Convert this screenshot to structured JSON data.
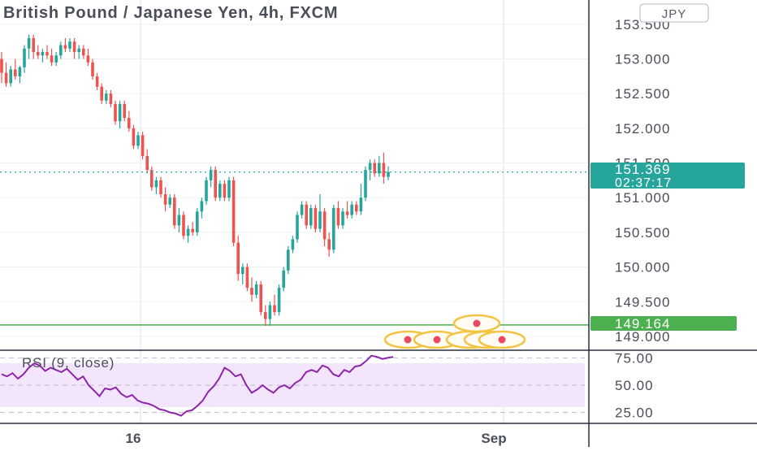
{
  "header": {
    "title": "British Pound / Japanese Yen, 4h, FXCM",
    "currency_badge": "JPY"
  },
  "price_axis": {
    "ticks": [
      "153.500",
      "153.000",
      "152.500",
      "152.000",
      "151.500",
      "151.000",
      "150.500",
      "150.000",
      "149.500",
      "149.000"
    ]
  },
  "last_price": {
    "value": "151.369",
    "countdown": "02:37:17"
  },
  "level_line": {
    "value": "149.164"
  },
  "rsi_pane": {
    "label": "RSI (9, close)",
    "ticks": [
      "75.00",
      "50.00",
      "25.00"
    ]
  },
  "time_axis": {
    "labels": [
      "16",
      "Sep"
    ]
  },
  "colors": {
    "up": "#26a69a",
    "down": "#ef5350",
    "level": "#4caf50",
    "last_price": "#26a69a",
    "rsi_line": "#8e24aa",
    "rsi_band": "#f3e5fb",
    "event_marker": "#f5c342"
  },
  "chart_data": [
    {
      "type": "candlestick",
      "title": "British Pound / Japanese Yen, 4h, FXCM",
      "ylim": [
        148.8,
        153.85
      ],
      "x_labels": [
        "16",
        "Sep"
      ],
      "candles": [
        [
          153.0,
          153.1,
          152.65,
          152.8
        ],
        [
          152.8,
          152.95,
          152.6,
          152.65
        ],
        [
          152.65,
          152.9,
          152.6,
          152.85
        ],
        [
          152.85,
          153.0,
          152.7,
          152.75
        ],
        [
          152.75,
          152.9,
          152.65,
          152.88
        ],
        [
          152.88,
          153.2,
          152.8,
          153.15
        ],
        [
          153.15,
          153.35,
          153.0,
          153.3
        ],
        [
          153.3,
          153.35,
          153.0,
          153.1
        ],
        [
          153.1,
          153.2,
          153.0,
          153.05
        ],
        [
          153.05,
          153.15,
          152.95,
          153.1
        ],
        [
          153.1,
          153.2,
          153.0,
          153.05
        ],
        [
          153.05,
          153.15,
          152.9,
          152.95
        ],
        [
          152.95,
          153.1,
          152.9,
          153.05
        ],
        [
          153.05,
          153.25,
          153.0,
          153.2
        ],
        [
          153.2,
          153.3,
          153.1,
          153.15
        ],
        [
          153.15,
          153.3,
          153.1,
          153.25
        ],
        [
          153.25,
          153.3,
          153.0,
          153.1
        ],
        [
          153.1,
          153.2,
          153.0,
          153.15
        ],
        [
          153.15,
          153.2,
          153.0,
          153.05
        ],
        [
          153.05,
          153.15,
          152.9,
          152.95
        ],
        [
          152.95,
          153.0,
          152.7,
          152.75
        ],
        [
          152.75,
          152.8,
          152.55,
          152.6
        ],
        [
          152.6,
          152.65,
          152.35,
          152.4
        ],
        [
          152.4,
          152.55,
          152.35,
          152.5
        ],
        [
          152.5,
          152.55,
          152.3,
          152.35
        ],
        [
          152.35,
          152.4,
          152.05,
          152.1
        ],
        [
          152.1,
          152.4,
          152.0,
          152.35
        ],
        [
          152.35,
          152.4,
          152.1,
          152.15
        ],
        [
          152.15,
          152.25,
          151.95,
          152.0
        ],
        [
          152.0,
          152.05,
          151.7,
          151.75
        ],
        [
          151.75,
          151.95,
          151.7,
          151.9
        ],
        [
          151.9,
          151.95,
          151.55,
          151.6
        ],
        [
          151.6,
          151.7,
          151.35,
          151.4
        ],
        [
          151.4,
          151.45,
          151.1,
          151.15
        ],
        [
          151.15,
          151.3,
          151.05,
          151.25
        ],
        [
          151.25,
          151.3,
          151.0,
          151.05
        ],
        [
          151.05,
          151.15,
          150.8,
          150.9
        ],
        [
          150.9,
          151.05,
          150.85,
          151.0
        ],
        [
          151.0,
          151.05,
          150.55,
          150.6
        ],
        [
          150.6,
          150.85,
          150.5,
          150.75
        ],
        [
          150.75,
          150.8,
          150.4,
          150.45
        ],
        [
          150.45,
          150.6,
          150.35,
          150.55
        ],
        [
          150.55,
          150.65,
          150.45,
          150.5
        ],
        [
          150.5,
          150.85,
          150.45,
          150.8
        ],
        [
          150.8,
          151.0,
          150.7,
          150.95
        ],
        [
          150.95,
          151.3,
          150.9,
          151.25
        ],
        [
          151.25,
          151.45,
          151.15,
          151.4
        ],
        [
          151.4,
          151.45,
          150.95,
          151.0
        ],
        [
          151.0,
          151.25,
          150.95,
          151.2
        ],
        [
          151.2,
          151.25,
          150.95,
          151.0
        ],
        [
          151.0,
          151.3,
          150.95,
          151.25
        ],
        [
          151.25,
          151.3,
          150.3,
          150.35
        ],
        [
          150.35,
          150.45,
          149.8,
          149.9
        ],
        [
          149.9,
          150.05,
          149.75,
          150.0
        ],
        [
          150.0,
          150.05,
          149.65,
          149.7
        ],
        [
          149.7,
          149.85,
          149.5,
          149.6
        ],
        [
          149.6,
          149.8,
          149.55,
          149.75
        ],
        [
          149.75,
          149.8,
          149.3,
          149.35
        ],
        [
          149.35,
          149.45,
          149.15,
          149.25
        ],
        [
          149.25,
          149.5,
          149.15,
          149.45
        ],
        [
          149.45,
          149.6,
          149.3,
          149.35
        ],
        [
          149.35,
          149.75,
          149.3,
          149.7
        ],
        [
          149.7,
          150.0,
          149.65,
          149.95
        ],
        [
          149.95,
          150.3,
          149.9,
          150.25
        ],
        [
          150.25,
          150.45,
          150.2,
          150.4
        ],
        [
          150.4,
          150.8,
          150.35,
          150.75
        ],
        [
          150.75,
          150.95,
          150.7,
          150.9
        ],
        [
          150.9,
          150.95,
          150.55,
          150.6
        ],
        [
          150.6,
          150.9,
          150.55,
          150.85
        ],
        [
          150.85,
          150.9,
          150.5,
          150.55
        ],
        [
          150.55,
          151.05,
          150.5,
          150.8
        ],
        [
          150.8,
          150.85,
          150.3,
          150.4
        ],
        [
          150.4,
          150.5,
          150.15,
          150.25
        ],
        [
          150.25,
          150.9,
          150.2,
          150.85
        ],
        [
          150.85,
          150.95,
          150.55,
          150.6
        ],
        [
          150.6,
          150.85,
          150.55,
          150.8
        ],
        [
          150.8,
          150.95,
          150.7,
          150.75
        ],
        [
          150.75,
          150.95,
          150.7,
          150.9
        ],
        [
          150.9,
          150.95,
          150.75,
          150.8
        ],
        [
          150.8,
          151.2,
          150.75,
          151.0
        ],
        [
          151.0,
          151.45,
          150.95,
          151.4
        ],
        [
          151.4,
          151.55,
          151.25,
          151.5
        ],
        [
          151.5,
          151.55,
          151.3,
          151.35
        ],
        [
          151.35,
          151.6,
          151.3,
          151.5
        ],
        [
          151.5,
          151.65,
          151.2,
          151.3
        ],
        [
          151.3,
          151.45,
          151.25,
          151.37
        ]
      ],
      "level": 149.164,
      "last": 151.369
    },
    {
      "type": "line",
      "title": "RSI (9, close)",
      "ylim": [
        15,
        82
      ],
      "ticks": [
        75,
        50,
        25
      ],
      "band": [
        30,
        70
      ],
      "values": [
        60,
        58,
        61,
        56,
        60,
        66,
        70,
        68,
        63,
        66,
        64,
        62,
        65,
        60,
        55,
        58,
        50,
        45,
        40,
        47,
        46,
        48,
        42,
        39,
        41,
        36,
        34,
        33,
        31,
        28,
        27,
        25,
        24,
        22,
        26,
        27,
        31,
        36,
        44,
        49,
        56,
        66,
        63,
        58,
        60,
        50,
        43,
        46,
        50,
        46,
        43,
        48,
        50,
        47,
        52,
        55,
        62,
        64,
        62,
        68,
        66,
        60,
        58,
        64,
        62,
        67,
        68,
        72,
        77,
        76,
        74,
        75,
        76
      ]
    }
  ]
}
